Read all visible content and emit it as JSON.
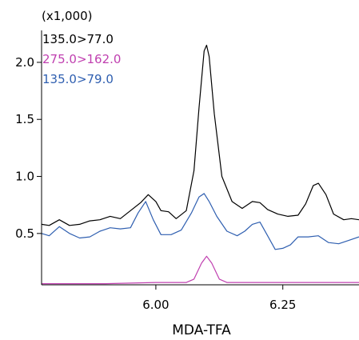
{
  "chart_data": {
    "type": "line",
    "xlabel": "MDA-TFA",
    "y_multiplier": "(x1,000)",
    "xlim": [
      5.775,
      6.4
    ],
    "ylim": [
      0.05,
      2.28
    ],
    "x_ticks": [
      {
        "value": 6.0,
        "label": "6.00"
      },
      {
        "value": 6.25,
        "label": "6.25"
      }
    ],
    "y_ticks": [
      {
        "value": 0.5,
        "label": "0.5"
      },
      {
        "value": 1.0,
        "label": "1.0"
      },
      {
        "value": 1.5,
        "label": "1.5"
      },
      {
        "value": 2.0,
        "label": "2.0"
      }
    ],
    "grid": false,
    "legend_position": "top-left",
    "series": [
      {
        "name": "135.0>77.0",
        "color": "#000000",
        "points": [
          [
            5.775,
            0.58
          ],
          [
            5.79,
            0.57
          ],
          [
            5.81,
            0.62
          ],
          [
            5.83,
            0.57
          ],
          [
            5.85,
            0.58
          ],
          [
            5.87,
            0.61
          ],
          [
            5.89,
            0.62
          ],
          [
            5.91,
            0.65
          ],
          [
            5.93,
            0.63
          ],
          [
            5.95,
            0.7
          ],
          [
            5.97,
            0.77
          ],
          [
            5.985,
            0.84
          ],
          [
            6.0,
            0.78
          ],
          [
            6.01,
            0.7
          ],
          [
            6.025,
            0.69
          ],
          [
            6.04,
            0.63
          ],
          [
            6.06,
            0.7
          ],
          [
            6.075,
            1.05
          ],
          [
            6.085,
            1.6
          ],
          [
            6.095,
            2.1
          ],
          [
            6.1,
            2.15
          ],
          [
            6.105,
            2.05
          ],
          [
            6.115,
            1.55
          ],
          [
            6.13,
            1.0
          ],
          [
            6.15,
            0.78
          ],
          [
            6.17,
            0.72
          ],
          [
            6.19,
            0.78
          ],
          [
            6.205,
            0.77
          ],
          [
            6.22,
            0.71
          ],
          [
            6.24,
            0.67
          ],
          [
            6.26,
            0.65
          ],
          [
            6.28,
            0.66
          ],
          [
            6.295,
            0.76
          ],
          [
            6.31,
            0.92
          ],
          [
            6.32,
            0.94
          ],
          [
            6.335,
            0.84
          ],
          [
            6.35,
            0.67
          ],
          [
            6.37,
            0.62
          ],
          [
            6.385,
            0.63
          ],
          [
            6.4,
            0.62
          ]
        ]
      },
      {
        "name": "275.0>162.0",
        "color": "#c040b0",
        "points": [
          [
            5.775,
            0.06
          ],
          [
            5.9,
            0.06
          ],
          [
            6.0,
            0.07
          ],
          [
            6.06,
            0.07
          ],
          [
            6.075,
            0.1
          ],
          [
            6.09,
            0.24
          ],
          [
            6.1,
            0.3
          ],
          [
            6.11,
            0.24
          ],
          [
            6.125,
            0.1
          ],
          [
            6.14,
            0.07
          ],
          [
            6.25,
            0.07
          ],
          [
            6.4,
            0.07
          ]
        ]
      },
      {
        "name": "135.0>79.0",
        "color": "#2f5fb0",
        "points": [
          [
            5.775,
            0.5
          ],
          [
            5.79,
            0.48
          ],
          [
            5.81,
            0.56
          ],
          [
            5.83,
            0.5
          ],
          [
            5.85,
            0.46
          ],
          [
            5.87,
            0.47
          ],
          [
            5.89,
            0.52
          ],
          [
            5.91,
            0.55
          ],
          [
            5.93,
            0.54
          ],
          [
            5.95,
            0.55
          ],
          [
            5.965,
            0.68
          ],
          [
            5.98,
            0.78
          ],
          [
            5.995,
            0.62
          ],
          [
            6.01,
            0.49
          ],
          [
            6.03,
            0.49
          ],
          [
            6.05,
            0.53
          ],
          [
            6.07,
            0.68
          ],
          [
            6.085,
            0.82
          ],
          [
            6.095,
            0.85
          ],
          [
            6.105,
            0.78
          ],
          [
            6.12,
            0.65
          ],
          [
            6.14,
            0.52
          ],
          [
            6.16,
            0.48
          ],
          [
            6.175,
            0.52
          ],
          [
            6.19,
            0.58
          ],
          [
            6.205,
            0.6
          ],
          [
            6.22,
            0.48
          ],
          [
            6.235,
            0.36
          ],
          [
            6.25,
            0.37
          ],
          [
            6.265,
            0.4
          ],
          [
            6.28,
            0.47
          ],
          [
            6.3,
            0.47
          ],
          [
            6.32,
            0.48
          ],
          [
            6.34,
            0.42
          ],
          [
            6.36,
            0.41
          ],
          [
            6.38,
            0.44
          ],
          [
            6.4,
            0.47
          ]
        ]
      }
    ]
  }
}
